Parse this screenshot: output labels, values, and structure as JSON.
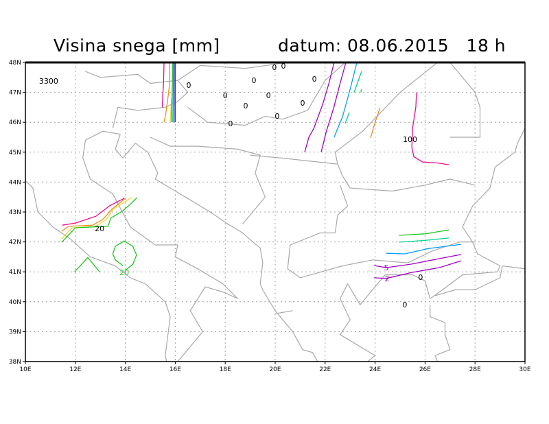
{
  "header": {
    "title": "Visina snega [mm]",
    "datum": "datum: 08.06.2015   18 h"
  },
  "chart_data": {
    "type": "contour-map",
    "title": "Visina snega [mm]",
    "subtitle": "datum: 08.06.2015   18 h",
    "xlim": [
      10,
      30
    ],
    "ylim": [
      38,
      48
    ],
    "grid": true,
    "x_ticks": [
      "10E",
      "12E",
      "14E",
      "16E",
      "18E",
      "20E",
      "22E",
      "24E",
      "26E",
      "28E",
      "30E"
    ],
    "y_ticks": [
      "38N",
      "39N",
      "40N",
      "41N",
      "42N",
      "43N",
      "44N",
      "45N",
      "46N",
      "47N",
      "48N"
    ],
    "contours": [
      {
        "color": "#f0098c",
        "points": [
          [
            15.55,
            48
          ],
          [
            15.53,
            47.3
          ],
          [
            15.5,
            46.9
          ],
          [
            15.48,
            46.5
          ]
        ]
      },
      {
        "color": "#f08a20",
        "points": [
          [
            15.77,
            48
          ],
          [
            15.76,
            47.2
          ],
          [
            15.72,
            46.9
          ],
          [
            15.62,
            46.3
          ],
          [
            15.55,
            46.0
          ]
        ]
      },
      {
        "color": "#e6dc32",
        "points": [
          [
            15.85,
            46.8
          ],
          [
            15.82,
            46.3
          ],
          [
            15.8,
            46.0
          ]
        ]
      },
      {
        "color": "#1ec81e",
        "points": [
          [
            15.9,
            48
          ],
          [
            15.87,
            46.9
          ],
          [
            15.85,
            46.0
          ]
        ]
      },
      {
        "color": "#00d28c",
        "points": [
          [
            15.93,
            48
          ],
          [
            15.9,
            46.0
          ]
        ]
      },
      {
        "color": "#1e3cff",
        "points": [
          [
            15.96,
            48
          ],
          [
            15.95,
            46.0
          ]
        ]
      },
      {
        "color": "#a000c8",
        "points": [
          [
            16.0,
            48
          ],
          [
            16.0,
            46.0
          ]
        ]
      },
      {
        "color": "#a000c8",
        "points": [
          [
            22.36,
            48
          ],
          [
            22.15,
            47.3
          ],
          [
            21.9,
            46.6
          ],
          [
            21.55,
            45.8
          ],
          [
            21.35,
            45.5
          ],
          [
            21.18,
            45.0
          ]
        ]
      },
      {
        "color": "#a000c8",
        "points": [
          [
            22.83,
            48
          ],
          [
            22.6,
            47.3
          ],
          [
            22.35,
            46.5
          ],
          [
            22.05,
            45.7
          ],
          [
            21.84,
            45.0
          ]
        ]
      },
      {
        "color": "#00a0ff",
        "points": [
          [
            23.27,
            48
          ],
          [
            23.0,
            47.1
          ],
          [
            22.7,
            46.2
          ],
          [
            22.36,
            45.5
          ]
        ]
      },
      {
        "color": "#00d28c",
        "points": [
          [
            23.46,
            47.7
          ],
          [
            23.16,
            47.0
          ]
        ]
      },
      {
        "color": "#1ec81e",
        "points": [
          [
            23.45,
            47.1
          ],
          [
            23.43,
            47.0
          ]
        ]
      },
      {
        "color": "#00d28c",
        "points": [
          [
            22.97,
            46.33
          ],
          [
            22.8,
            45.96
          ]
        ]
      },
      {
        "color": "#f08a20",
        "points": [
          [
            24.2,
            46.49
          ],
          [
            24.0,
            46.0
          ],
          [
            23.82,
            45.48
          ]
        ]
      },
      {
        "color": "#f0098c",
        "points": [
          [
            25.66,
            46.99
          ],
          [
            25.63,
            46.5
          ],
          [
            25.5,
            45.8
          ],
          [
            25.47,
            45.16
          ],
          [
            25.55,
            44.85
          ],
          [
            25.9,
            44.67
          ],
          [
            26.5,
            44.64
          ],
          [
            26.95,
            44.58
          ]
        ]
      },
      {
        "color": "#1ec81e",
        "points": [
          [
            24.95,
            42.22
          ],
          [
            26.0,
            42.27
          ],
          [
            26.95,
            42.4
          ]
        ]
      },
      {
        "color": "#00d28c",
        "points": [
          [
            24.95,
            41.99
          ],
          [
            26.0,
            42.05
          ],
          [
            26.95,
            42.13
          ]
        ]
      },
      {
        "color": "#00a0ff",
        "points": [
          [
            24.45,
            41.62
          ],
          [
            25.19,
            41.6
          ],
          [
            26.15,
            41.78
          ],
          [
            27.45,
            41.92
          ]
        ]
      },
      {
        "color": "#a000c8",
        "points": [
          [
            23.96,
            41.21
          ],
          [
            24.45,
            41.14
          ],
          [
            25.47,
            41.26
          ],
          [
            26.57,
            41.44
          ],
          [
            27.45,
            41.58
          ]
        ]
      },
      {
        "color": "#a000c8",
        "points": [
          [
            23.96,
            40.8
          ],
          [
            24.45,
            40.78
          ],
          [
            25.47,
            40.98
          ],
          [
            26.57,
            41.14
          ],
          [
            27.45,
            41.37
          ]
        ]
      },
      {
        "color": "#f0098c",
        "points": [
          [
            11.48,
            42.56
          ],
          [
            12.0,
            42.63
          ],
          [
            12.83,
            42.86
          ],
          [
            13.38,
            43.21
          ],
          [
            13.96,
            43.46
          ]
        ]
      },
      {
        "color": "#f08a20",
        "points": [
          [
            11.46,
            42.36
          ],
          [
            11.73,
            42.52
          ],
          [
            12.69,
            42.56
          ],
          [
            13.1,
            42.75
          ],
          [
            13.46,
            43.09
          ],
          [
            14.01,
            43.46
          ]
        ]
      },
      {
        "color": "#e6dc32",
        "points": [
          [
            11.46,
            42.11
          ],
          [
            11.87,
            42.47
          ],
          [
            12.83,
            42.52
          ],
          [
            13.24,
            42.75
          ],
          [
            13.51,
            43.09
          ],
          [
            14.25,
            43.48
          ]
        ]
      },
      {
        "color": "#1ec81e",
        "points": [
          [
            11.46,
            41.99
          ],
          [
            12.0,
            42.47
          ],
          [
            12.69,
            42.5
          ],
          [
            13.31,
            42.52
          ],
          [
            13.42,
            42.8
          ],
          [
            13.84,
            43.0
          ],
          [
            14.14,
            43.21
          ],
          [
            14.47,
            43.48
          ]
        ]
      },
      {
        "color": "#1ec81e",
        "points": [
          [
            13.92,
            41.2
          ],
          [
            13.6,
            41.4
          ],
          [
            13.5,
            41.6
          ],
          [
            13.6,
            41.85
          ],
          [
            13.96,
            42.03
          ],
          [
            14.3,
            41.85
          ],
          [
            14.45,
            41.56
          ],
          [
            14.3,
            41.25
          ],
          [
            14.0,
            41.05
          ]
        ]
      },
      {
        "color": "#1ec81e",
        "points": [
          [
            11.97,
            41.0
          ],
          [
            12.5,
            41.48
          ],
          [
            12.97,
            41.0
          ]
        ]
      }
    ],
    "labels": [
      {
        "text": "3300",
        "lon": 10.93,
        "lat": 47.38,
        "color": "#000000"
      },
      {
        "text": "0",
        "lon": 19.97,
        "lat": 47.84,
        "color": "#000000"
      },
      {
        "text": "0",
        "lon": 20.33,
        "lat": 47.89,
        "color": "#000000"
      },
      {
        "text": "0",
        "lon": 16.54,
        "lat": 47.24,
        "color": "#000000"
      },
      {
        "text": "0",
        "lon": 19.15,
        "lat": 47.4,
        "color": "#000000"
      },
      {
        "text": "0",
        "lon": 21.57,
        "lat": 47.45,
        "color": "#000000"
      },
      {
        "text": "0",
        "lon": 18.0,
        "lat": 46.9,
        "color": "#000000"
      },
      {
        "text": "0",
        "lon": 19.73,
        "lat": 46.9,
        "color": "#000000"
      },
      {
        "text": "0",
        "lon": 18.82,
        "lat": 46.56,
        "color": "#000000"
      },
      {
        "text": "0",
        "lon": 21.1,
        "lat": 46.65,
        "color": "#000000"
      },
      {
        "text": "0",
        "lon": 20.08,
        "lat": 46.21,
        "color": "#000000"
      },
      {
        "text": "0",
        "lon": 18.21,
        "lat": 45.96,
        "color": "#000000"
      },
      {
        "text": "100",
        "lon": 25.4,
        "lat": 45.43,
        "color": "#000000"
      },
      {
        "text": "20",
        "lon": 12.97,
        "lat": 42.45,
        "color": "#000000"
      },
      {
        "text": "20",
        "lon": 13.96,
        "lat": 40.98,
        "color": "#1ec81e"
      },
      {
        "text": "5",
        "lon": 24.45,
        "lat": 41.14,
        "color": "#a000c8"
      },
      {
        "text": "2",
        "lon": 24.48,
        "lat": 40.78,
        "color": "#a000c8"
      },
      {
        "text": "0",
        "lon": 25.82,
        "lat": 40.82,
        "color": "#000000"
      },
      {
        "text": "0",
        "lon": 25.19,
        "lat": 39.9,
        "color": "#000000"
      }
    ]
  }
}
